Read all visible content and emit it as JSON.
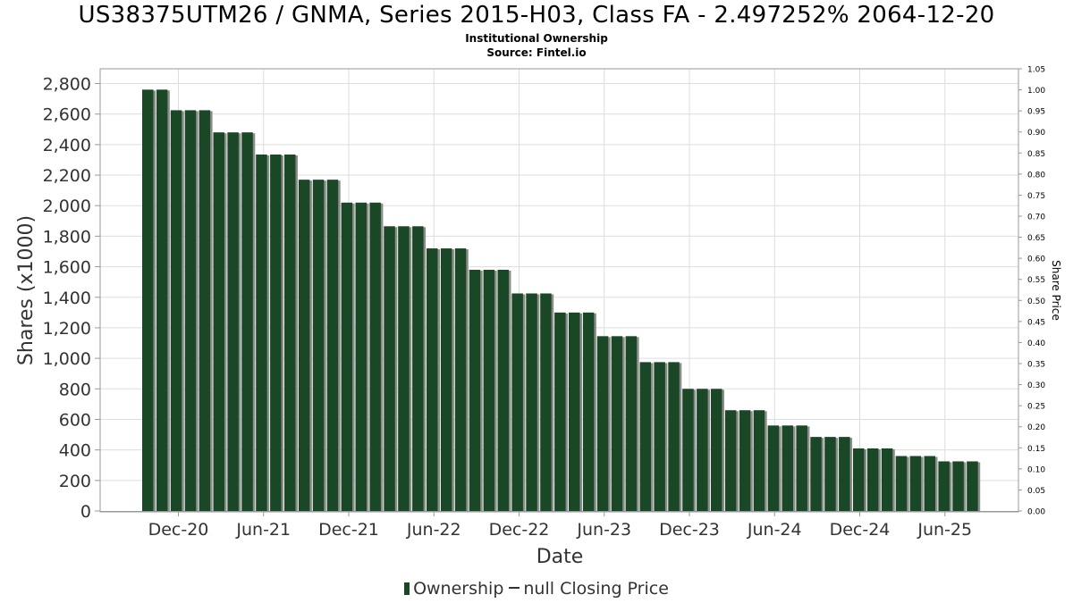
{
  "title": "US38375UTM26 / GNMA, Series 2015-H03, Class FA - 2.497252% 2064-12-20",
  "subtitle_1": "Institutional Ownership",
  "subtitle_2": "Source: Fintel.io",
  "legend": {
    "ownership_label": "Ownership",
    "price_label": "null Closing Price"
  },
  "colors": {
    "bar": "#1a4725",
    "bar_shadow": "#8c8c8c",
    "grid": "#dddddd"
  },
  "chart_data": {
    "type": "bar",
    "xlabel": "Date",
    "ylabel": "Shares (x1000)",
    "y2label": "Share Price",
    "ylim": [
      0,
      2900
    ],
    "y2lim": [
      0,
      1.05
    ],
    "yticks": [
      "0",
      "200",
      "400",
      "600",
      "800",
      "1,000",
      "1,200",
      "1,400",
      "1,600",
      "1,800",
      "2,000",
      "2,200",
      "2,400",
      "2,600",
      "2,800"
    ],
    "y2ticks": [
      "0.00",
      "0.05",
      "0.10",
      "0.15",
      "0.20",
      "0.25",
      "0.30",
      "0.35",
      "0.40",
      "0.45",
      "0.50",
      "0.55",
      "0.60",
      "0.65",
      "0.70",
      "0.75",
      "0.80",
      "0.85",
      "0.90",
      "0.95",
      "1.00",
      "1.05"
    ],
    "xticks": [
      "Dec-20",
      "Jun-21",
      "Dec-21",
      "Jun-22",
      "Dec-22",
      "Jun-23",
      "Dec-23",
      "Jun-24",
      "Dec-24",
      "Jun-25"
    ],
    "grid": true,
    "legend_position": "bottom",
    "series": [
      {
        "name": "Ownership",
        "values": [
          2760,
          2760,
          2625,
          2625,
          2625,
          2480,
          2480,
          2480,
          2335,
          2335,
          2335,
          2170,
          2170,
          2170,
          2020,
          2020,
          2020,
          1865,
          1865,
          1865,
          1720,
          1720,
          1720,
          1580,
          1580,
          1580,
          1425,
          1425,
          1425,
          1300,
          1300,
          1300,
          1145,
          1145,
          1145,
          975,
          975,
          975,
          800,
          800,
          800,
          660,
          660,
          660,
          560,
          560,
          560,
          485,
          485,
          485,
          410,
          410,
          410,
          360,
          360,
          360,
          325,
          325,
          325
        ]
      }
    ]
  }
}
